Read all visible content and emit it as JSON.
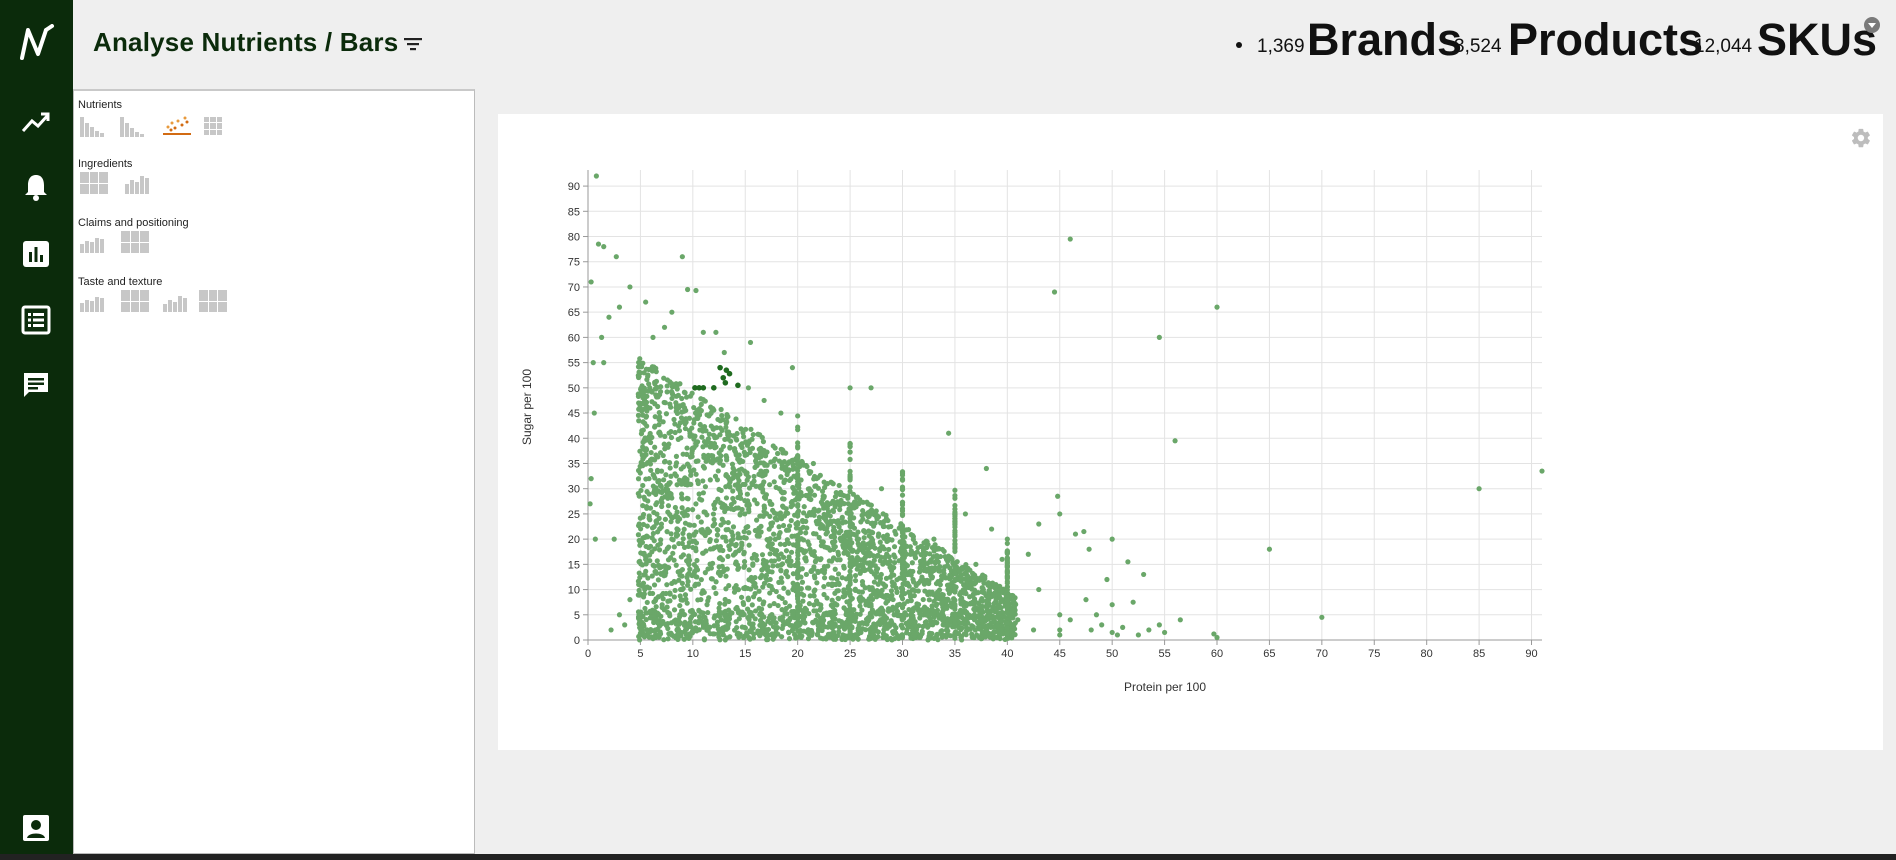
{
  "header": {
    "title": "Analyse Nutrients / Bars",
    "stats": [
      {
        "count": "1,369",
        "label": "Brands"
      },
      {
        "count": "3,524",
        "label": "Products"
      },
      {
        "count": "12,044",
        "label": "SKUs"
      }
    ]
  },
  "nav": {
    "items": [
      "logo-icon",
      "trend-icon",
      "bell-icon",
      "bar-chart-icon",
      "list-icon",
      "chat-icon",
      "user-icon"
    ],
    "active": "bar-chart-icon",
    "color": "#0b2b0b"
  },
  "sidebar": {
    "groups": [
      {
        "title": "Nutrients",
        "charts": [
          "bar-chart",
          "bar-chart",
          "scatter-chart",
          "grid-chart"
        ],
        "active_index": 2
      },
      {
        "title": "Ingredients",
        "charts": [
          "grid-chart",
          "bar-chart"
        ]
      },
      {
        "title": "Claims and positioning",
        "charts": [
          "bar-chart",
          "grid-chart"
        ]
      },
      {
        "title": "Taste and texture",
        "charts": [
          "bar-chart",
          "grid-chart",
          "bar-chart",
          "grid-chart"
        ]
      }
    ]
  },
  "chart_data": {
    "type": "scatter",
    "title": "",
    "xlabel": "Protein per 100",
    "ylabel": "Sugar per 100",
    "xlim": [
      0,
      91
    ],
    "ylim": [
      0,
      92
    ],
    "x_ticks": [
      0,
      5,
      10,
      15,
      20,
      25,
      30,
      35,
      40,
      45,
      50,
      55,
      60,
      65,
      70,
      75,
      80,
      85,
      90
    ],
    "y_ticks": [
      0,
      5,
      10,
      15,
      20,
      25,
      30,
      35,
      40,
      45,
      50,
      55,
      60,
      65,
      70,
      75,
      80,
      85,
      90
    ],
    "grid": true,
    "point_color": "#6aa769",
    "highlight_color": "#1f6b1f",
    "points": [
      [
        0.8,
        92
      ],
      [
        1.0,
        78.5
      ],
      [
        1.5,
        78
      ],
      [
        2.7,
        76
      ],
      [
        0.3,
        71
      ],
      [
        9,
        76
      ],
      [
        9.5,
        69.5
      ],
      [
        10.3,
        69.3
      ],
      [
        46,
        79.5
      ],
      [
        44.5,
        69
      ],
      [
        60,
        66
      ],
      [
        54.5,
        60
      ],
      [
        56,
        39.5
      ],
      [
        85,
        30
      ],
      [
        91,
        33.5
      ],
      [
        65,
        18
      ],
      [
        70,
        4.5
      ],
      [
        56.5,
        4
      ],
      [
        52,
        7.5
      ],
      [
        0.5,
        55
      ],
      [
        0.6,
        45
      ],
      [
        0.3,
        32
      ],
      [
        0.7,
        20
      ],
      [
        0.2,
        27
      ],
      [
        2.5,
        20
      ],
      [
        1.3,
        60
      ],
      [
        3,
        66
      ],
      [
        2.0,
        64
      ],
      [
        1.5,
        55
      ],
      [
        4,
        70
      ],
      [
        5.5,
        67
      ],
      [
        6.2,
        60
      ],
      [
        7.3,
        62
      ],
      [
        8,
        65
      ],
      [
        11,
        61
      ],
      [
        12.2,
        61
      ],
      [
        15.5,
        59
      ],
      [
        19.5,
        54
      ],
      [
        16.8,
        47.5
      ],
      [
        18.4,
        45
      ],
      [
        13,
        57
      ],
      [
        15.3,
        50
      ],
      [
        21.5,
        35
      ],
      [
        27,
        50
      ],
      [
        25,
        50
      ],
      [
        34.4,
        41
      ],
      [
        38,
        34
      ],
      [
        40,
        20
      ],
      [
        39.5,
        16
      ],
      [
        42,
        17
      ],
      [
        43,
        23
      ],
      [
        44.8,
        28.5
      ],
      [
        45,
        25
      ],
      [
        46.5,
        21
      ],
      [
        47.3,
        21.5
      ],
      [
        47.8,
        18
      ],
      [
        50,
        20
      ],
      [
        49.5,
        12
      ],
      [
        50,
        7
      ],
      [
        51.5,
        15.5
      ],
      [
        53,
        13
      ],
      [
        50.5,
        1
      ],
      [
        53.5,
        2
      ],
      [
        55,
        1.5
      ],
      [
        60,
        0.5
      ],
      [
        59.7,
        1.2
      ],
      [
        45,
        1
      ],
      [
        45,
        2
      ],
      [
        45,
        5
      ],
      [
        46,
        4
      ],
      [
        47.5,
        8
      ],
      [
        42.5,
        2
      ],
      [
        41,
        4
      ],
      [
        43,
        10
      ],
      [
        48,
        2
      ],
      [
        49,
        3
      ],
      [
        50,
        1.5
      ],
      [
        51,
        2.5
      ],
      [
        52.5,
        1
      ],
      [
        54.5,
        3
      ],
      [
        48.5,
        5
      ],
      [
        33,
        20
      ],
      [
        30,
        25
      ],
      [
        28,
        30
      ],
      [
        31,
        12
      ],
      [
        35,
        12
      ],
      [
        36,
        25
      ],
      [
        37,
        15
      ],
      [
        38.5,
        22
      ],
      [
        3,
        5
      ],
      [
        3.5,
        3
      ],
      [
        4,
        8
      ],
      [
        2.2,
        2
      ],
      [
        11,
        3
      ],
      [
        13,
        14
      ],
      [
        8,
        20
      ],
      [
        9,
        10
      ]
    ],
    "highlight_points": [
      [
        12.6,
        54
      ],
      [
        13.2,
        53.5
      ],
      [
        13.5,
        52.8
      ],
      [
        12.9,
        52
      ],
      [
        13.1,
        51
      ],
      [
        14.3,
        50.5
      ],
      [
        10.2,
        50
      ],
      [
        10.6,
        50
      ],
      [
        11.0,
        50
      ],
      [
        12.0,
        50
      ]
    ]
  }
}
